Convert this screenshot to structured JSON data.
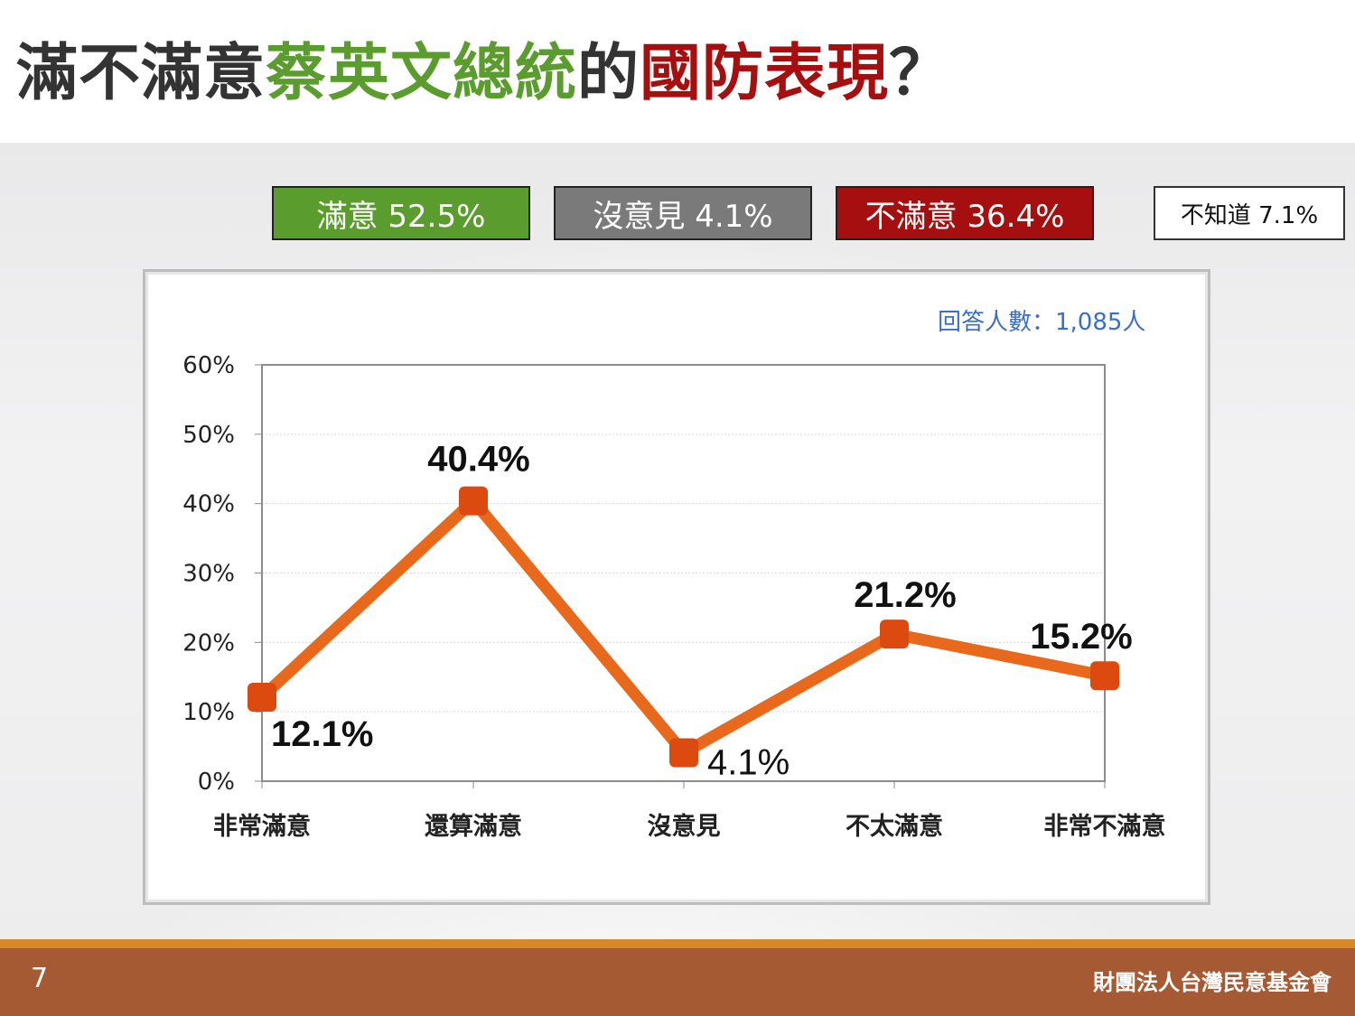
{
  "title": {
    "part1": "滿不滿意",
    "part2": "蔡英文總統",
    "part3": "的",
    "part4": "國防表現",
    "part5": "？"
  },
  "summary": [
    {
      "label": "滿意 52.5%",
      "color": "#5a9c2e"
    },
    {
      "label": "沒意見 4.1%",
      "color": "#7a7a7a"
    },
    {
      "label": "不滿意 36.4%",
      "color": "#a50f0f"
    },
    {
      "label": "不知道 7.1%",
      "color": "#ffffff"
    }
  ],
  "respondents": "回答人數：1,085人",
  "chart_data": {
    "type": "line",
    "categories": [
      "非常滿意",
      "還算滿意",
      "沒意見",
      "不太滿意",
      "非常不滿意"
    ],
    "series": [
      {
        "values": [
          12.1,
          40.4,
          4.1,
          21.2,
          15.2
        ],
        "color": "#e8681c"
      }
    ],
    "data_labels": [
      "12.1%",
      "40.4%",
      "4.1%",
      "21.2%",
      "15.2%"
    ],
    "y_ticks": [
      "0%",
      "10%",
      "20%",
      "30%",
      "40%",
      "50%",
      "60%"
    ],
    "ylim": [
      0,
      60
    ],
    "grid": true,
    "marker_color": "#dd4a10"
  },
  "footer": {
    "page_number": "7",
    "organization": "財團法人台灣民意基金會"
  }
}
